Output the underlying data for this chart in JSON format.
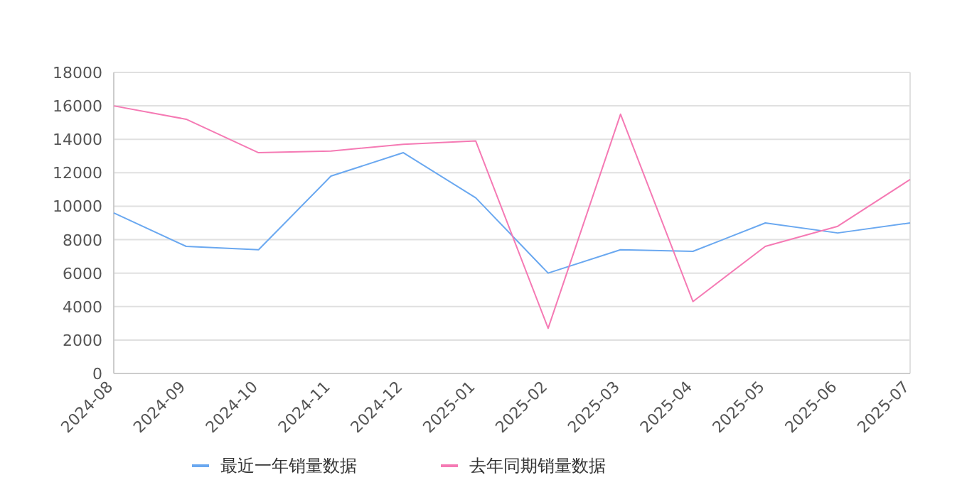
{
  "chart_data": {
    "type": "line",
    "categories": [
      "2024-08",
      "2024-09",
      "2024-10",
      "2024-11",
      "2024-12",
      "2025-01",
      "2025-02",
      "2025-03",
      "2025-04",
      "2025-05",
      "2025-06",
      "2025-07"
    ],
    "series": [
      {
        "name": "最近一年销量数据",
        "color": "#6aa8f0",
        "values": [
          9600,
          7600,
          7400,
          11800,
          13200,
          10500,
          6000,
          7400,
          7300,
          9000,
          8400,
          9000
        ]
      },
      {
        "name": "去年同期销量数据",
        "color": "#f57ab4",
        "values": [
          16000,
          15200,
          13200,
          13300,
          13700,
          13900,
          2700,
          15500,
          4300,
          7600,
          8800,
          11600
        ]
      }
    ],
    "ylim": [
      0,
      18000
    ],
    "yticks": [
      0,
      2000,
      4000,
      6000,
      8000,
      10000,
      12000,
      14000,
      16000,
      18000
    ],
    "grid": "y",
    "legend": "bottom",
    "marker": "none",
    "line_style": "solid"
  }
}
